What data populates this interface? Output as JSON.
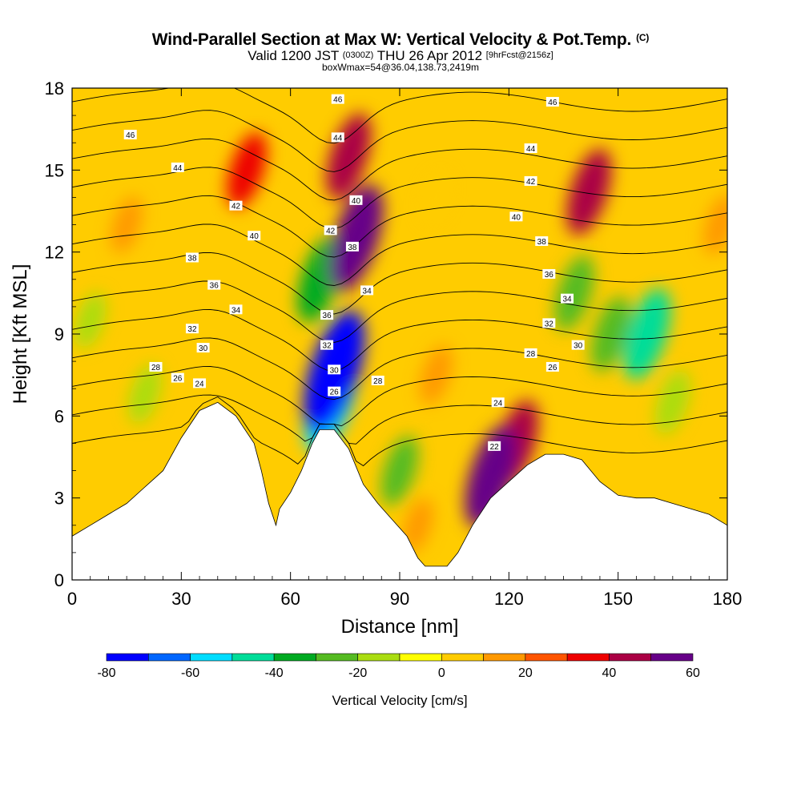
{
  "title": {
    "main": "Wind-Parallel Section at Max W: Vertical Velocity & Pot.Temp.",
    "main_suffix": "(C)",
    "valid_prefix": "Valid 1200 JST",
    "valid_mid_small": "(0300Z)",
    "valid_date": "THU 26 Apr 2012",
    "valid_suffix_small": "[9hrFcst@2156z]",
    "box": "boxWmax=54@36.04,138.73,2419m"
  },
  "chart_data": {
    "type": "heatmap",
    "xlabel": "Distance [nm]",
    "ylabel": "Height [Kft MSL]",
    "xlim": [
      0,
      180
    ],
    "ylim": [
      0,
      18
    ],
    "x_ticks": [
      0,
      30,
      60,
      90,
      120,
      150,
      180
    ],
    "y_ticks": [
      0,
      3,
      6,
      9,
      12,
      15,
      18
    ],
    "colorbar": {
      "label": "Vertical Velocity [cm/s]",
      "levels": [
        -80,
        -70,
        -60,
        -50,
        -40,
        -30,
        -20,
        -10,
        0,
        10,
        20,
        30,
        40,
        50,
        60
      ],
      "tick_labels": [
        -80,
        -60,
        -40,
        -20,
        0,
        20,
        40,
        60
      ],
      "colors": [
        "#0000ff",
        "#0066ff",
        "#00ddff",
        "#00dd99",
        "#00aa22",
        "#55bb22",
        "#aadd11",
        "#ffff00",
        "#ffcc00",
        "#ff9900",
        "#ff5500",
        "#ee0000",
        "#aa0044",
        "#660088"
      ]
    },
    "terrain_kft": [
      [
        0,
        1.6
      ],
      [
        5,
        2.0
      ],
      [
        10,
        2.4
      ],
      [
        15,
        2.8
      ],
      [
        20,
        3.4
      ],
      [
        25,
        4.0
      ],
      [
        30,
        5.2
      ],
      [
        35,
        6.2
      ],
      [
        40,
        6.5
      ],
      [
        45,
        6.0
      ],
      [
        50,
        5.0
      ],
      [
        52,
        4.0
      ],
      [
        54,
        2.8
      ],
      [
        56,
        2.0
      ],
      [
        57,
        2.6
      ],
      [
        60,
        3.2
      ],
      [
        63,
        4.0
      ],
      [
        66,
        5.0
      ],
      [
        68,
        5.5
      ],
      [
        72,
        5.5
      ],
      [
        76,
        4.8
      ],
      [
        80,
        3.5
      ],
      [
        84,
        2.8
      ],
      [
        88,
        2.2
      ],
      [
        92,
        1.6
      ],
      [
        95,
        0.8
      ],
      [
        97,
        0.5
      ],
      [
        100,
        0.5
      ],
      [
        103,
        0.5
      ],
      [
        106,
        1.0
      ],
      [
        110,
        2.0
      ],
      [
        115,
        3.0
      ],
      [
        120,
        3.6
      ],
      [
        125,
        4.2
      ],
      [
        130,
        4.6
      ],
      [
        135,
        4.6
      ],
      [
        140,
        4.4
      ],
      [
        145,
        3.6
      ],
      [
        150,
        3.1
      ],
      [
        155,
        3.0
      ],
      [
        160,
        3.0
      ],
      [
        165,
        2.8
      ],
      [
        170,
        2.6
      ],
      [
        175,
        2.4
      ],
      [
        180,
        2.0
      ]
    ],
    "w_features_cms": [
      {
        "x": 78,
        "y": 12.5,
        "value": 60
      },
      {
        "x": 76,
        "y": 15.5,
        "value": 40
      },
      {
        "x": 48,
        "y": 15.0,
        "value": 30
      },
      {
        "x": 142,
        "y": 14.2,
        "value": 40
      },
      {
        "x": 115,
        "y": 3.8,
        "value": 55
      },
      {
        "x": 122,
        "y": 5.0,
        "value": 40
      },
      {
        "x": 100,
        "y": 7.5,
        "value": 15
      },
      {
        "x": 95,
        "y": 2.0,
        "value": 10
      },
      {
        "x": 68,
        "y": 11.0,
        "value": -40
      },
      {
        "x": 72,
        "y": 7.6,
        "value": -75
      },
      {
        "x": 71,
        "y": 6.5,
        "value": -55
      },
      {
        "x": 90,
        "y": 4.0,
        "value": -25
      },
      {
        "x": 20,
        "y": 6.8,
        "value": -15
      },
      {
        "x": 158,
        "y": 9.0,
        "value": -45
      },
      {
        "x": 148,
        "y": 9.0,
        "value": -30
      },
      {
        "x": 138,
        "y": 10.5,
        "value": -30
      },
      {
        "x": 165,
        "y": 6.5,
        "value": -20
      },
      {
        "x": 15,
        "y": 13.0,
        "value": 12
      },
      {
        "x": 178,
        "y": 13.0,
        "value": 15
      },
      {
        "x": 5,
        "y": 9.5,
        "value": -12
      },
      {
        "x": 100,
        "y": 14.0,
        "value": 5
      }
    ],
    "theta_contours_c": [
      {
        "value": 22,
        "label_at": [
          116,
          4.9
        ]
      },
      {
        "value": 24,
        "label_at": [
          117,
          6.5
        ]
      },
      {
        "value": 24,
        "label_at": [
          35,
          7.2
        ]
      },
      {
        "value": 26,
        "label_at": [
          29,
          7.4
        ]
      },
      {
        "value": 26,
        "label_at": [
          72,
          6.9
        ]
      },
      {
        "value": 26,
        "label_at": [
          132,
          7.8
        ]
      },
      {
        "value": 28,
        "label_at": [
          23,
          7.8
        ]
      },
      {
        "value": 28,
        "label_at": [
          84,
          7.3
        ]
      },
      {
        "value": 28,
        "label_at": [
          126,
          8.3
        ]
      },
      {
        "value": 30,
        "label_at": [
          36,
          8.5
        ]
      },
      {
        "value": 30,
        "label_at": [
          72,
          7.7
        ]
      },
      {
        "value": 30,
        "label_at": [
          139,
          8.6
        ]
      },
      {
        "value": 32,
        "label_at": [
          33,
          9.2
        ]
      },
      {
        "value": 32,
        "label_at": [
          70,
          8.6
        ]
      },
      {
        "value": 32,
        "label_at": [
          131,
          9.4
        ]
      },
      {
        "value": 34,
        "label_at": [
          45,
          9.9
        ]
      },
      {
        "value": 34,
        "label_at": [
          81,
          10.6
        ]
      },
      {
        "value": 34,
        "label_at": [
          136,
          10.3
        ]
      },
      {
        "value": 36,
        "label_at": [
          39,
          10.8
        ]
      },
      {
        "value": 36,
        "label_at": [
          70,
          9.7
        ]
      },
      {
        "value": 36,
        "label_at": [
          131,
          11.2
        ]
      },
      {
        "value": 38,
        "label_at": [
          33,
          11.8
        ]
      },
      {
        "value": 38,
        "label_at": [
          77,
          12.2
        ]
      },
      {
        "value": 38,
        "label_at": [
          129,
          12.4
        ]
      },
      {
        "value": 40,
        "label_at": [
          50,
          12.6
        ]
      },
      {
        "value": 40,
        "label_at": [
          78,
          13.9
        ]
      },
      {
        "value": 40,
        "label_at": [
          122,
          13.3
        ]
      },
      {
        "value": 42,
        "label_at": [
          45,
          13.7
        ]
      },
      {
        "value": 42,
        "label_at": [
          71,
          12.8
        ]
      },
      {
        "value": 42,
        "label_at": [
          126,
          14.6
        ]
      },
      {
        "value": 44,
        "label_at": [
          29,
          15.1
        ]
      },
      {
        "value": 44,
        "label_at": [
          73,
          16.2
        ]
      },
      {
        "value": 44,
        "label_at": [
          126,
          15.8
        ]
      },
      {
        "value": 46,
        "label_at": [
          16,
          16.3
        ]
      },
      {
        "value": 46,
        "label_at": [
          132,
          17.5
        ]
      },
      {
        "value": 46,
        "label_at": [
          73,
          17.6
        ]
      }
    ]
  }
}
